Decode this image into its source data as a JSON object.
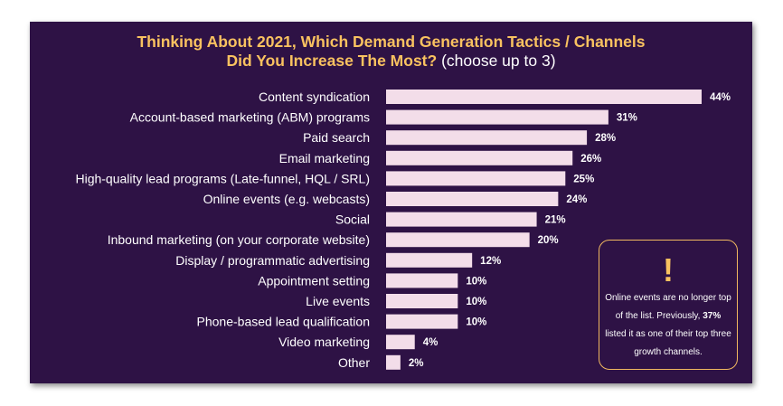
{
  "title": {
    "line1": "Thinking About 2021, Which Demand Generation Tactics / Channels",
    "line2_bold": "Did You Increase The Most?",
    "line2_rest": " (choose up to 3)"
  },
  "callout": {
    "icon": "exclamation-icon",
    "symbol": "!",
    "text_before": "Online events are no longer top of the list. Previously, ",
    "highlight": "37%",
    "text_after": " listed it as one of their top three growth channels."
  },
  "colors": {
    "background": "#2e1245",
    "bar": "#f3dde9",
    "title": "#f9c260",
    "callout_border": "#f0b860"
  },
  "chart_data": {
    "type": "bar",
    "orientation": "horizontal",
    "title": "Thinking About 2021, Which Demand Generation Tactics / Channels Did You Increase The Most? (choose up to 3)",
    "categories": [
      "Content syndication",
      "Account-based marketing (ABM) programs",
      "Paid search",
      "Email marketing",
      "High-quality lead programs (Late-funnel, HQL / SRL)",
      "Online events (e.g. webcasts)",
      "Social",
      "Inbound marketing (on your corporate website)",
      "Display / programmatic advertising",
      "Appointment setting",
      "Live events",
      "Phone-based lead qualification",
      "Video marketing",
      "Other"
    ],
    "values": [
      44,
      31,
      28,
      26,
      25,
      24,
      21,
      20,
      12,
      10,
      10,
      10,
      4,
      2
    ],
    "value_labels": [
      "44%",
      "31%",
      "28%",
      "26%",
      "25%",
      "24%",
      "21%",
      "20%",
      "12%",
      "10%",
      "10%",
      "10%",
      "4%",
      "2%"
    ],
    "xlim": [
      0,
      44
    ],
    "grid": false,
    "legend": "none"
  }
}
